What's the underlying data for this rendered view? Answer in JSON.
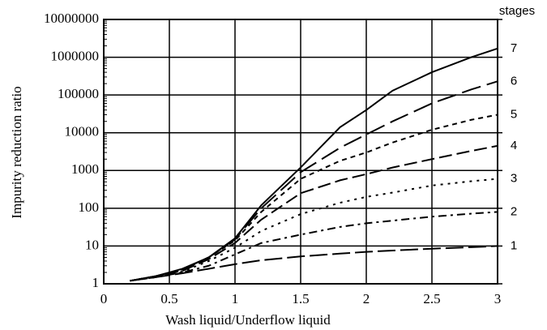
{
  "chart_data": {
    "type": "line",
    "x_label": "Wash liquid/Underflow liquid",
    "y_label": "Impurity reduction ratio",
    "legend_title": "stages",
    "legend": "right-end",
    "grid": true,
    "log_y": true,
    "xlim": [
      0,
      3
    ],
    "xticks": [
      0,
      0.5,
      1,
      1.5,
      2,
      2.5,
      3
    ],
    "ylim": [
      1,
      10000000
    ],
    "yticks": [
      1,
      10,
      100,
      1000,
      10000,
      100000,
      1000000,
      10000000
    ],
    "x": [
      0.2,
      0.4,
      0.6,
      0.8,
      1.0,
      1.2,
      1.5,
      1.8,
      2.0,
      2.2,
      2.5,
      2.8,
      3.0
    ],
    "series": [
      {
        "name": "1",
        "color": "#000000",
        "dash": "22 6",
        "values": [
          1.2,
          1.5,
          1.9,
          2.5,
          3.3,
          4.2,
          5.3,
          6.3,
          7,
          7.6,
          8.5,
          9.3,
          10
        ]
      },
      {
        "name": "2",
        "color": "#000000",
        "dash": "10 5 3 5",
        "values": [
          1.2,
          1.5,
          2,
          3,
          6,
          12,
          20,
          32,
          40,
          47,
          60,
          72,
          80
        ]
      },
      {
        "name": "3",
        "color": "#000000",
        "dash": "3 6",
        "values": [
          1.2,
          1.5,
          2.1,
          4,
          9,
          25,
          70,
          140,
          200,
          260,
          400,
          520,
          600
        ]
      },
      {
        "name": "4",
        "color": "#000000",
        "dash": "16 6",
        "values": [
          1.2,
          1.6,
          2.2,
          4.5,
          12,
          50,
          250,
          550,
          800,
          1200,
          2000,
          3300,
          4500
        ]
      },
      {
        "name": "5",
        "color": "#000000",
        "dash": "6 5",
        "values": [
          1.2,
          1.6,
          2.3,
          5,
          14,
          80,
          600,
          1800,
          3000,
          5500,
          12000,
          22000,
          30000
        ]
      },
      {
        "name": "6",
        "color": "#000000",
        "dash": "24 8",
        "values": [
          1.2,
          1.6,
          2.4,
          5,
          15,
          100,
          900,
          4000,
          9000,
          20000,
          60000,
          140000,
          230000
        ]
      },
      {
        "name": "7",
        "color": "#000000",
        "dash": "",
        "values": [
          1.2,
          1.6,
          2.5,
          5,
          16,
          120,
          1200,
          14000,
          40000,
          130000,
          400000,
          1000000,
          1700000
        ]
      }
    ]
  }
}
